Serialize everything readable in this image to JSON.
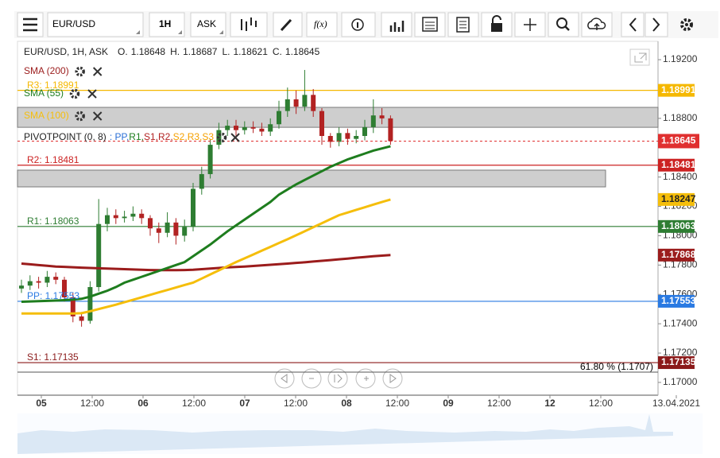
{
  "toolbar": {
    "symbol": "EUR/USD",
    "timeframe": "1H",
    "price_side": "ASK",
    "fx": "f(x)"
  },
  "chart_data": {
    "type": "candlestick",
    "title": "EUR/USD, 1H, ASK",
    "quote": {
      "labels": [
        "O.",
        "H.",
        "L.",
        "C."
      ],
      "values": [
        1.18648,
        1.18687,
        1.18621,
        1.18645
      ]
    },
    "ylim": [
      1.16913,
      1.19325
    ],
    "yticks": [
      {
        "value": 1.192,
        "label": "1.19200"
      },
      {
        "value": 1.188,
        "label": "1.18800"
      },
      {
        "value": 1.184,
        "label": "1.18400"
      },
      {
        "value": 1.182,
        "label": "1.18200"
      },
      {
        "value": 1.18,
        "label": "1.18000"
      },
      {
        "value": 1.178,
        "label": "1.17800"
      },
      {
        "value": 1.176,
        "label": "1.17600"
      },
      {
        "value": 1.174,
        "label": "1.17400"
      },
      {
        "value": 1.172,
        "label": "1.17200"
      },
      {
        "value": 1.17,
        "label": "1.17000"
      }
    ],
    "x_labels": [
      "05",
      "12:00",
      "06",
      "12:00",
      "07",
      "12:00",
      "08",
      "12:00",
      "09",
      "12:00",
      "12",
      "12:00",
      "13.04.2021"
    ],
    "candle_colors": {
      "up": "#2e7d32",
      "down": "#b22222"
    },
    "candles": {
      "open": [
        1.1764,
        1.1766,
        1.1769,
        1.1768,
        1.1772,
        1.177,
        1.1758,
        1.1745,
        1.1742,
        1.1765,
        1.1808,
        1.1814,
        1.1812,
        1.1813,
        1.1815,
        1.1812,
        1.1805,
        1.1802,
        1.1809,
        1.18,
        1.1806,
        1.1832,
        1.1842,
        1.1862,
        1.1872,
        1.1875,
        1.1872,
        1.1874,
        1.1873,
        1.1871,
        1.1876,
        1.1885,
        1.1893,
        1.1888,
        1.1896,
        1.1885,
        1.1868,
        1.1864,
        1.187,
        1.1866,
        1.1868,
        1.1874,
        1.1882,
        1.188
      ],
      "high": [
        1.177,
        1.1773,
        1.1772,
        1.1776,
        1.1775,
        1.1772,
        1.1761,
        1.1748,
        1.1769,
        1.1825,
        1.1819,
        1.1818,
        1.1817,
        1.182,
        1.1818,
        1.1814,
        1.1809,
        1.1816,
        1.1812,
        1.1811,
        1.1836,
        1.1847,
        1.1866,
        1.1877,
        1.1879,
        1.1879,
        1.1878,
        1.1878,
        1.1877,
        1.188,
        1.1892,
        1.1901,
        1.1899,
        1.1913,
        1.19,
        1.1887,
        1.187,
        1.1874,
        1.1873,
        1.1872,
        1.1879,
        1.1893,
        1.1887,
        1.1882
      ],
      "low": [
        1.1761,
        1.1763,
        1.1764,
        1.1765,
        1.1767,
        1.1755,
        1.1741,
        1.1738,
        1.174,
        1.1762,
        1.1803,
        1.1808,
        1.1809,
        1.181,
        1.1808,
        1.18,
        1.1795,
        1.1799,
        1.1794,
        1.1796,
        1.1803,
        1.1828,
        1.1839,
        1.1859,
        1.1868,
        1.1868,
        1.1869,
        1.187,
        1.1868,
        1.1868,
        1.1873,
        1.1881,
        1.1883,
        1.1885,
        1.1881,
        1.1862,
        1.186,
        1.1861,
        1.1862,
        1.1863,
        1.1865,
        1.187,
        1.1876,
        1.1862
      ],
      "close": [
        1.1766,
        1.1769,
        1.1768,
        1.1772,
        1.177,
        1.1758,
        1.1745,
        1.1742,
        1.1765,
        1.1808,
        1.1814,
        1.1812,
        1.1813,
        1.1815,
        1.1812,
        1.1805,
        1.1802,
        1.1809,
        1.18,
        1.1806,
        1.1832,
        1.1842,
        1.1862,
        1.1872,
        1.1875,
        1.1872,
        1.1874,
        1.1873,
        1.1871,
        1.1876,
        1.1885,
        1.1893,
        1.1888,
        1.1896,
        1.1885,
        1.1868,
        1.1864,
        1.187,
        1.1866,
        1.1868,
        1.1874,
        1.1882,
        1.188,
        1.18645
      ]
    },
    "series": [
      {
        "name": "SMA (200)",
        "color": "#9b1c1c",
        "price_box": true,
        "values": [
          1.1781,
          1.17805,
          1.178,
          1.17795,
          1.1779,
          1.17788,
          1.17785,
          1.17782,
          1.1778,
          1.17778,
          1.17776,
          1.17774,
          1.17772,
          1.1777,
          1.17768,
          1.17766,
          1.17765,
          1.17765,
          1.17765,
          1.17766,
          1.17768,
          1.17772,
          1.17776,
          1.1778,
          1.17784,
          1.17787,
          1.1779,
          1.17794,
          1.17798,
          1.17802,
          1.17806,
          1.1781,
          1.17815,
          1.17819,
          1.17824,
          1.17829,
          1.17834,
          1.17839,
          1.17844,
          1.1785,
          1.17855,
          1.1786,
          1.17864,
          1.17868
        ]
      },
      {
        "name": "SMA (55)",
        "color": "#1e7d1e",
        "price_box": false,
        "values": [
          1.1755,
          1.17552,
          1.17554,
          1.17556,
          1.17558,
          1.17561,
          1.17565,
          1.1757,
          1.17585,
          1.17605,
          1.17625,
          1.1765,
          1.1768,
          1.177,
          1.1772,
          1.1774,
          1.1776,
          1.1778,
          1.178,
          1.1782,
          1.1786,
          1.179,
          1.1794,
          1.17985,
          1.1803,
          1.1807,
          1.1811,
          1.1815,
          1.1819,
          1.1823,
          1.1828,
          1.18315,
          1.1835,
          1.1838,
          1.1841,
          1.1844,
          1.1847,
          1.18495,
          1.1852,
          1.1854,
          1.1856,
          1.1858,
          1.18595,
          1.1861
        ]
      },
      {
        "name": "SMA (100)",
        "color": "#f5be0b",
        "price_box": true,
        "values": [
          1.1747,
          1.1747,
          1.1747,
          1.1747,
          1.1747,
          1.1747,
          1.1747,
          1.17472,
          1.17485,
          1.175,
          1.17515,
          1.1753,
          1.17547,
          1.17563,
          1.1758,
          1.17597,
          1.17614,
          1.1763,
          1.17647,
          1.17664,
          1.1768,
          1.17708,
          1.17736,
          1.17764,
          1.17792,
          1.1782,
          1.17846,
          1.17872,
          1.17898,
          1.17924,
          1.1795,
          1.17976,
          1.18003,
          1.1803,
          1.18058,
          1.18085,
          1.18113,
          1.1814,
          1.18158,
          1.18176,
          1.18194,
          1.18212,
          1.1823,
          1.18247
        ]
      }
    ],
    "pivot_legend": {
      "name": "PIVOTPOINT (0, 8)",
      "items": [
        {
          "text": ": PP,",
          "color": "#2a6fd6"
        },
        {
          "text": " R1,",
          "color": "#1e7d1e"
        },
        {
          "text": " S1,",
          "color": "#b22222"
        },
        {
          "text": " R2,",
          "color": "#b22222"
        },
        {
          "text": " S2,",
          "color": "#f5a000"
        },
        {
          "text": " R3,",
          "color": "#f5a000"
        },
        {
          "text": " S3",
          "color": "#f5a000"
        }
      ]
    },
    "levels": [
      {
        "label": "R3: 1.18991",
        "value": 1.18991,
        "color": "#f5b800"
      },
      {
        "label": "R2: 1.18481",
        "value": 1.18481,
        "color": "#cc2222"
      },
      {
        "label": "R1: 1.18063",
        "value": 1.18063,
        "color": "#2e7d32"
      },
      {
        "label": "PP: 1.17553",
        "value": 1.17553,
        "color": "#2a7ae2"
      },
      {
        "label": "S1: 1.17135",
        "value": 1.17135,
        "color": "#8b1a1a"
      }
    ],
    "current_price": {
      "value": 1.18645,
      "color": "#e03030"
    },
    "zones": [
      {
        "from": 1.18739,
        "to": 1.18875,
        "end": "full"
      },
      {
        "from": 1.18333,
        "to": 1.18447,
        "end": "short"
      }
    ],
    "fib": {
      "label": "61.80 % (1.1707)",
      "value": 1.1707
    }
  }
}
